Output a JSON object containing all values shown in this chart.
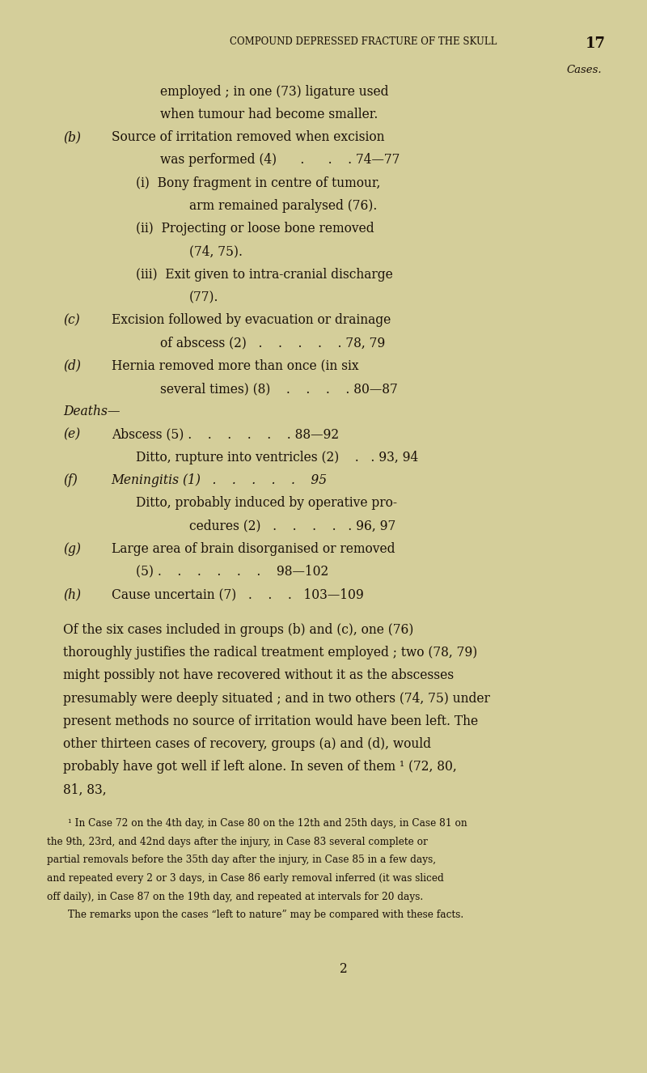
{
  "bg_color": "#d4ce9a",
  "page_color": "#d4ce9a",
  "text_color": "#1a1008",
  "header_text": "COMPOUND DEPRESSED FRACTURE OF THE SKULL",
  "page_number_header": "17",
  "cases_label": "Cases.",
  "figsize": [
    8.0,
    13.26
  ],
  "dpi": 100,
  "lines": [
    {
      "type": "indent2",
      "text": "employed ; in one (73) ligature used"
    },
    {
      "type": "indent2",
      "text": "when tumour had become smaller."
    },
    {
      "type": "lettered",
      "letter": "(b)",
      "text": "Source of irritation removed when excision"
    },
    {
      "type": "indent2b",
      "text": "was performed (4)      .      .    . 74—77"
    },
    {
      "type": "indent3",
      "text": "(i)  Bony fragment in centre of tumour,"
    },
    {
      "type": "indent4",
      "text": "arm remained paralysed (76)."
    },
    {
      "type": "indent3",
      "text": "(ii)  Projecting or loose bone removed"
    },
    {
      "type": "indent4",
      "text": "(74, 75)."
    },
    {
      "type": "indent3",
      "text": "(iii)  Exit given to intra-cranial discharge"
    },
    {
      "type": "indent4",
      "text": "(77)."
    },
    {
      "type": "lettered",
      "letter": "(c)",
      "text": "Excision followed by evacuation or drainage"
    },
    {
      "type": "indent2b",
      "text": "of abscess (2)   .    .    .    .    . 78, 79"
    },
    {
      "type": "lettered",
      "letter": "(d)",
      "text": "Hernia removed more than once (in six"
    },
    {
      "type": "indent2b",
      "text": "several times) (8)    .    .    .    . 80—87"
    },
    {
      "type": "deaths"
    },
    {
      "type": "lettered",
      "letter": "(e)",
      "text": "Abscess (5) .    .    .    .    .    . 88—92"
    },
    {
      "type": "indent3plain",
      "text": "Ditto, rupture into ventricles (2)    .   . 93, 94"
    },
    {
      "type": "lettered_italic",
      "letter": "(f)",
      "text": "Meningitis (1)   .    .    .    .    .    95"
    },
    {
      "type": "indent3plain",
      "text": "Ditto, probably induced by operative pro-"
    },
    {
      "type": "indent4b",
      "text": "cedures (2)   .    .    .    .   . 96, 97"
    },
    {
      "type": "lettered",
      "letter": "(g)",
      "text": "Large area of brain disorganised or removed"
    },
    {
      "type": "indent3b",
      "text": "(5) .    .    .    .    .    .    98—102"
    },
    {
      "type": "lettered",
      "letter": "(h)",
      "text": "Cause uncertain (7)   .    .    .   103—109"
    },
    {
      "type": "blank"
    },
    {
      "type": "paragraph",
      "text": "Of the six cases included in groups (b) and (c), one (76) thoroughly justifies the radical treatment employed ; two (78, 79) might possibly not have recovered without it as the abscesses presumably were deeply situated ; and in two others (74, 75) under present methods no source of irritation would have been left.  The other thirteen cases of recovery, groups (a) and (d), would probably have got well if left alone.  In seven of them ¹ (72, 80, 81, 83,"
    },
    {
      "type": "blank"
    },
    {
      "type": "footnote",
      "text": "¹ In Case 72 on the 4th day, in Case 80 on the 12th and 25th days, in Case 81 on the 9th, 23rd, and 42nd days after the injury, in Case 83 several complete or partial removals before the 35th day after the injury, in Case 85 in a few days, and repeated every 2 or 3 days, in Case 86 early removal inferred (it was sliced off daily), in Case 87 on the 19th day, and repeated at intervals for 20 days."
    },
    {
      "type": "footnote2",
      "text": "The remarks upon the cases “left to nature” may be compared with these facts."
    },
    {
      "type": "page_num",
      "text": "2"
    }
  ]
}
